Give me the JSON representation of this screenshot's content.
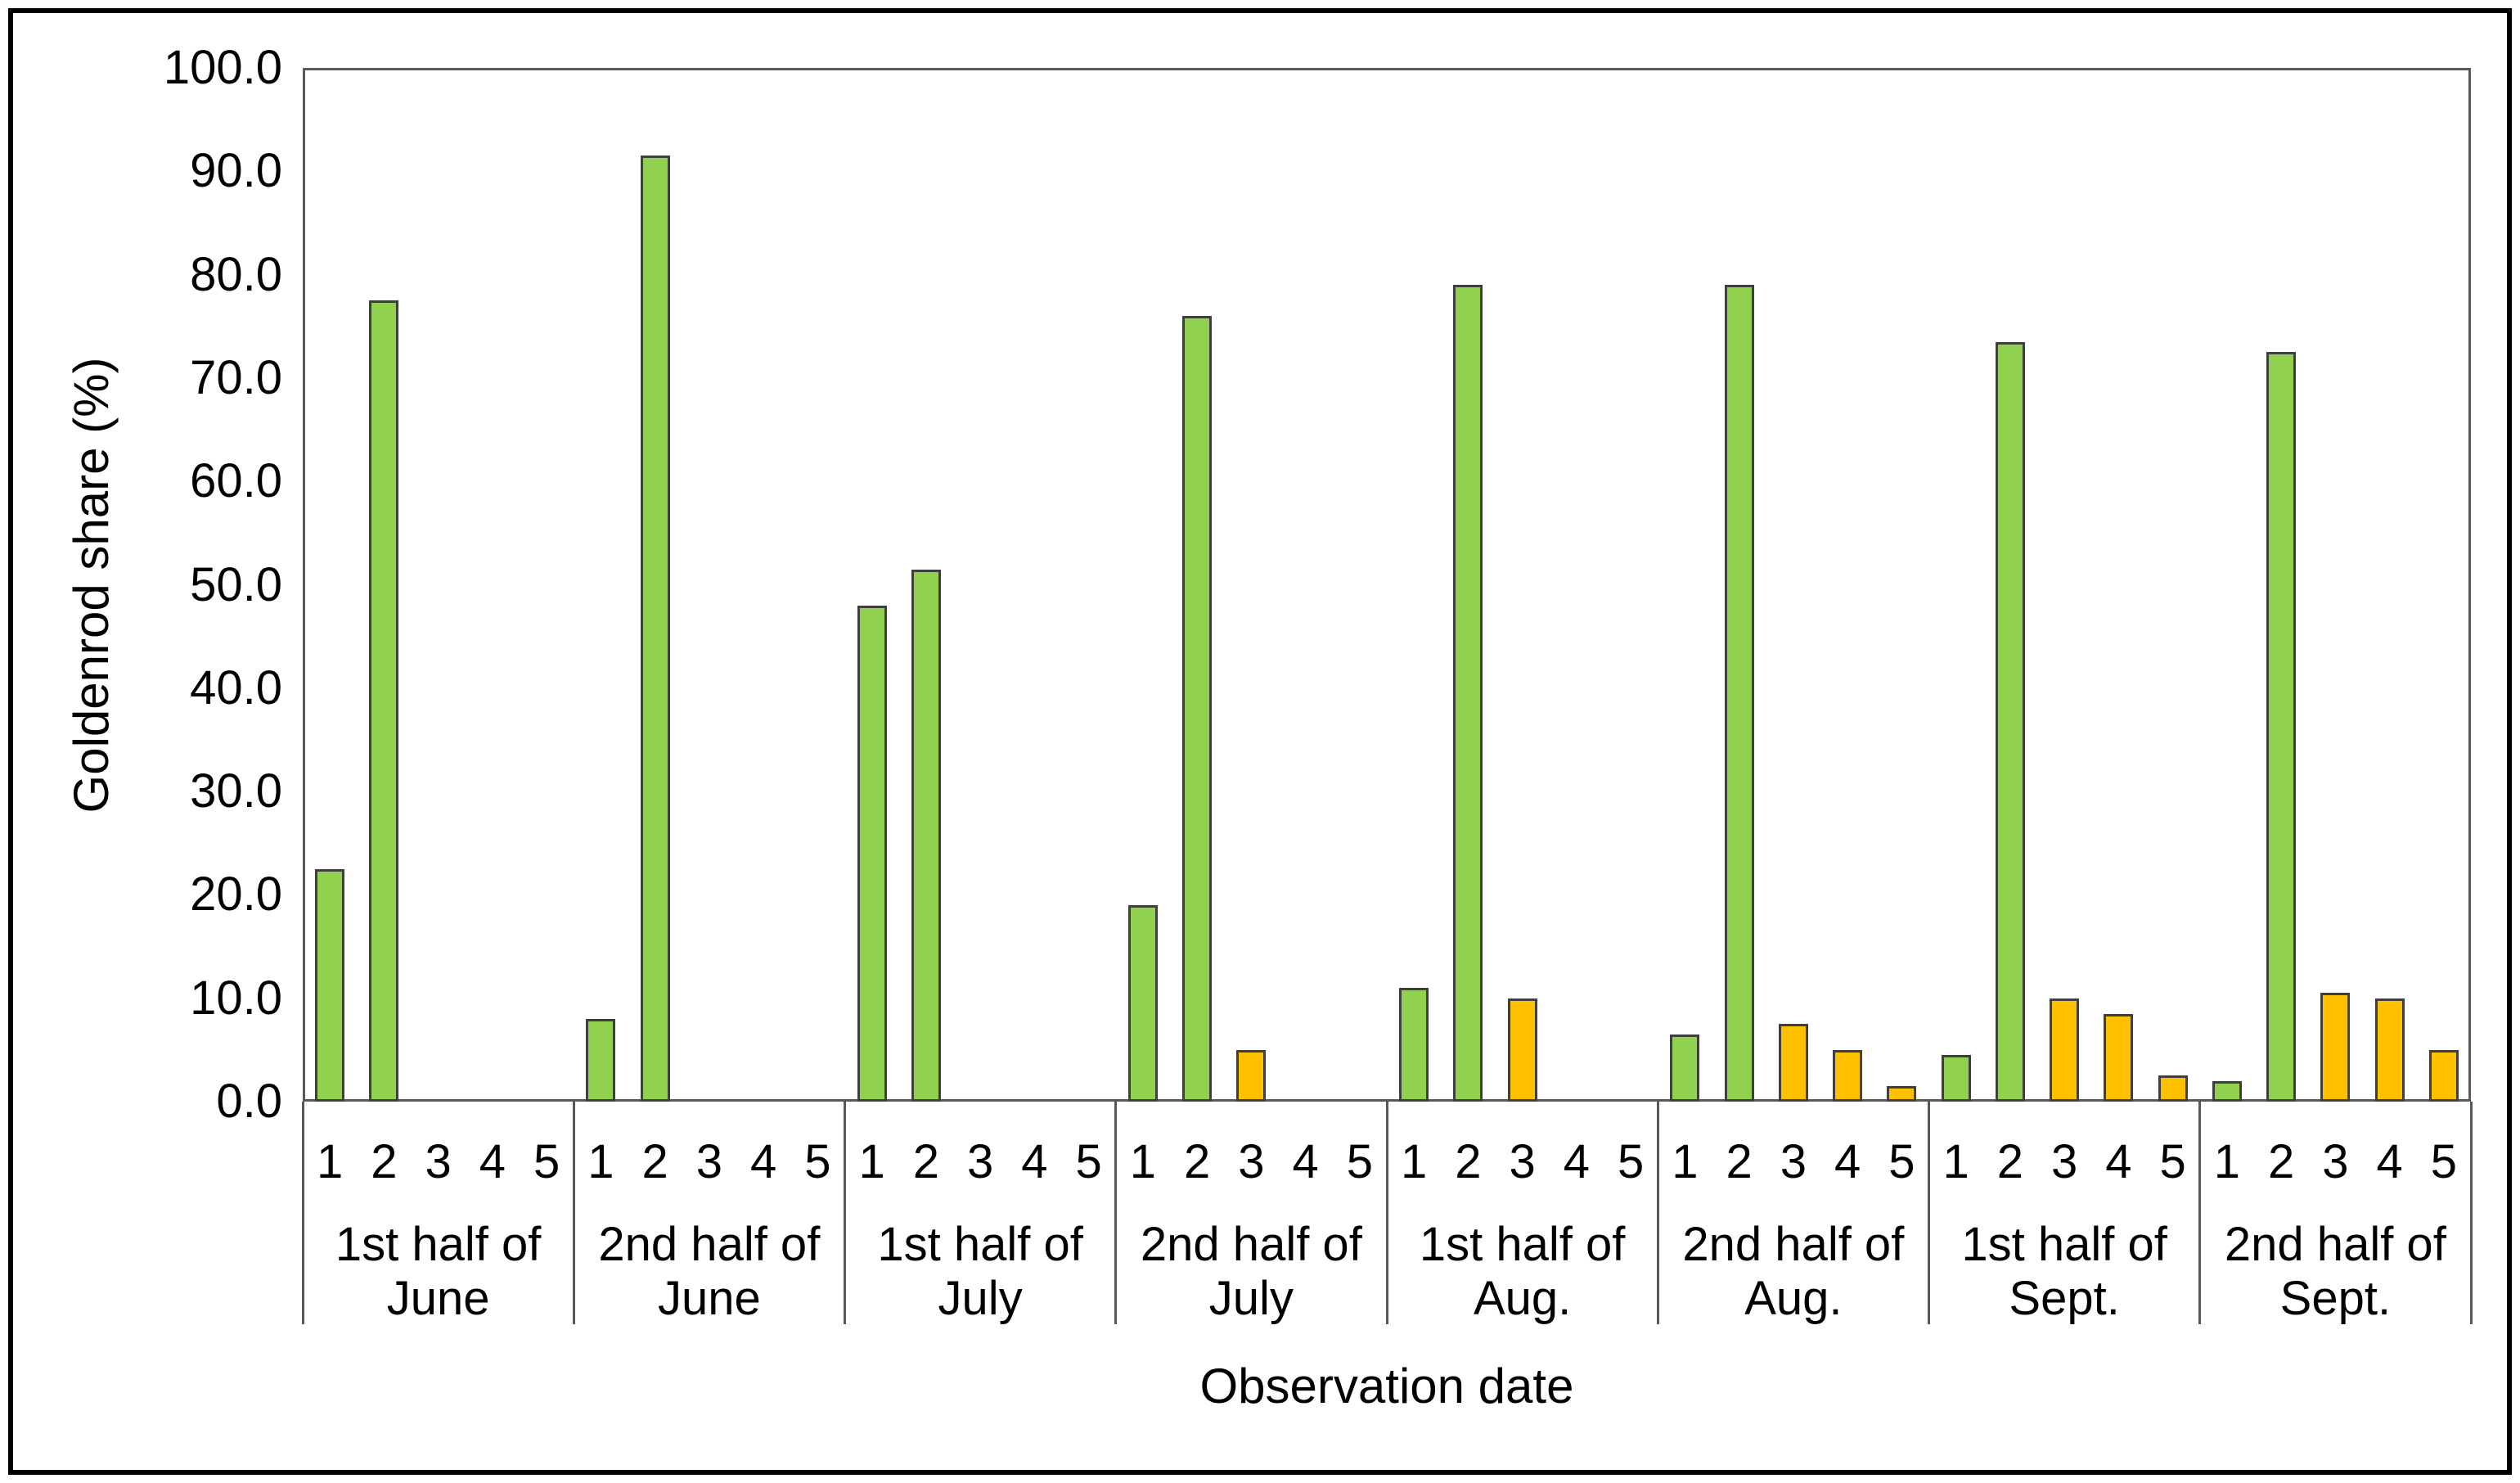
{
  "chart_data": {
    "type": "bar",
    "title": "",
    "xlabel": "Observation date",
    "ylabel": "Goldenrod share (%)",
    "ylim": [
      0,
      100
    ],
    "y_tick_step": 10,
    "y_tick_labels": [
      "100.0",
      "90.0",
      "80.0",
      "70.0",
      "60.0",
      "50.0",
      "40.0",
      "30.0",
      "20.0",
      "10.0",
      "0.0"
    ],
    "y_tick_values": [
      100,
      90,
      80,
      70,
      60,
      50,
      40,
      30,
      20,
      10,
      0
    ],
    "grid": false,
    "legend_position": "none",
    "slot_labels": [
      "1",
      "2",
      "3",
      "4",
      "5"
    ],
    "series_colors": {
      "green": "#92D050",
      "orange": "#FFC000"
    },
    "bar_border_color": "#3f3f3f",
    "axis_line_color": "#595959",
    "groups": [
      {
        "label": "1st half of June",
        "label_lines": [
          "1st half of",
          "June"
        ],
        "values": [
          22.5,
          77.5,
          null,
          null,
          null
        ],
        "colors": [
          "green",
          "green",
          null,
          null,
          null
        ]
      },
      {
        "label": "2nd half of June",
        "label_lines": [
          "2nd half of",
          "June"
        ],
        "values": [
          8.0,
          91.5,
          null,
          null,
          null
        ],
        "colors": [
          "green",
          "green",
          null,
          null,
          null
        ]
      },
      {
        "label": "1st half of July",
        "label_lines": [
          "1st half of",
          "July"
        ],
        "values": [
          48.0,
          51.5,
          null,
          null,
          null
        ],
        "colors": [
          "green",
          "green",
          null,
          null,
          null
        ]
      },
      {
        "label": "2nd half of July",
        "label_lines": [
          "2nd half of",
          "July"
        ],
        "values": [
          19.0,
          76.0,
          5.0,
          null,
          null
        ],
        "colors": [
          "green",
          "green",
          "orange",
          null,
          null
        ]
      },
      {
        "label": "1st half of Aug.",
        "label_lines": [
          "1st half of",
          "Aug."
        ],
        "values": [
          11.0,
          79.0,
          10.0,
          null,
          null
        ],
        "colors": [
          "green",
          "green",
          "orange",
          null,
          null
        ]
      },
      {
        "label": "2nd half of Aug.",
        "label_lines": [
          "2nd half of",
          "Aug."
        ],
        "values": [
          6.5,
          79.0,
          7.5,
          5.0,
          1.5
        ],
        "colors": [
          "green",
          "green",
          "orange",
          "orange",
          "orange"
        ]
      },
      {
        "label": "1st half of Sept.",
        "label_lines": [
          "1st half of",
          "Sept."
        ],
        "values": [
          4.5,
          73.5,
          10.0,
          8.5,
          2.5
        ],
        "colors": [
          "green",
          "green",
          "orange",
          "orange",
          "orange"
        ]
      },
      {
        "label": "2nd half of Sept.",
        "label_lines": [
          "2nd half of",
          "Sept."
        ],
        "values": [
          2.0,
          72.5,
          10.5,
          10.0,
          5.0
        ],
        "colors": [
          "green",
          "green",
          "orange",
          "orange",
          "orange"
        ]
      }
    ]
  }
}
